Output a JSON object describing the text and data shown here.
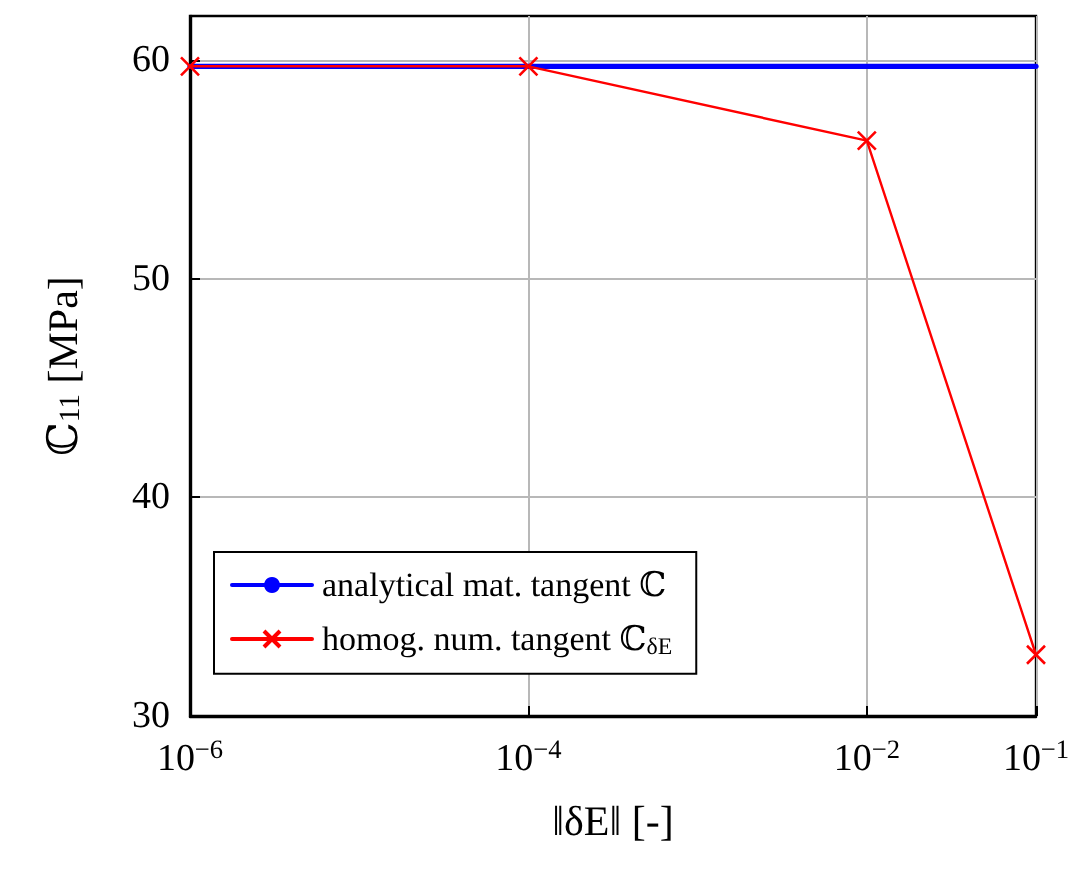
{
  "chart_data": {
    "type": "line",
    "xlabel": "‖δE‖ [-]",
    "ylabel": "ℂ$_{11}$ [MPa]",
    "log": "x",
    "xlim": [
      1e-06,
      0.1
    ],
    "xticks": [
      {
        "value": 1e-06,
        "label": "10$^{−6}$"
      },
      {
        "value": 0.0001,
        "label": "10$^{−4}$"
      },
      {
        "value": 0.01,
        "label": "10$^{−2}$"
      },
      {
        "value": 0.1,
        "label": "10$^{−1}$"
      }
    ],
    "ylim": [
      30,
      62
    ],
    "yticks": [
      30,
      40,
      50,
      60
    ],
    "grid": true,
    "legend": "bottom left",
    "series": [
      {
        "name": "analytical mat. tangent ℂ",
        "color": "#0000ff",
        "marker": "none",
        "x": [
          1e-06,
          0.1
        ],
        "values": [
          59.7,
          59.7
        ]
      },
      {
        "name": "homog. num. tangent ℂ$_{δE}$",
        "color": "#ff0000",
        "marker": "cross",
        "x": [
          1e-06,
          0.0001,
          0.01,
          0.1
        ],
        "values": [
          59.7,
          59.7,
          56.3,
          32.8
        ]
      }
    ]
  }
}
